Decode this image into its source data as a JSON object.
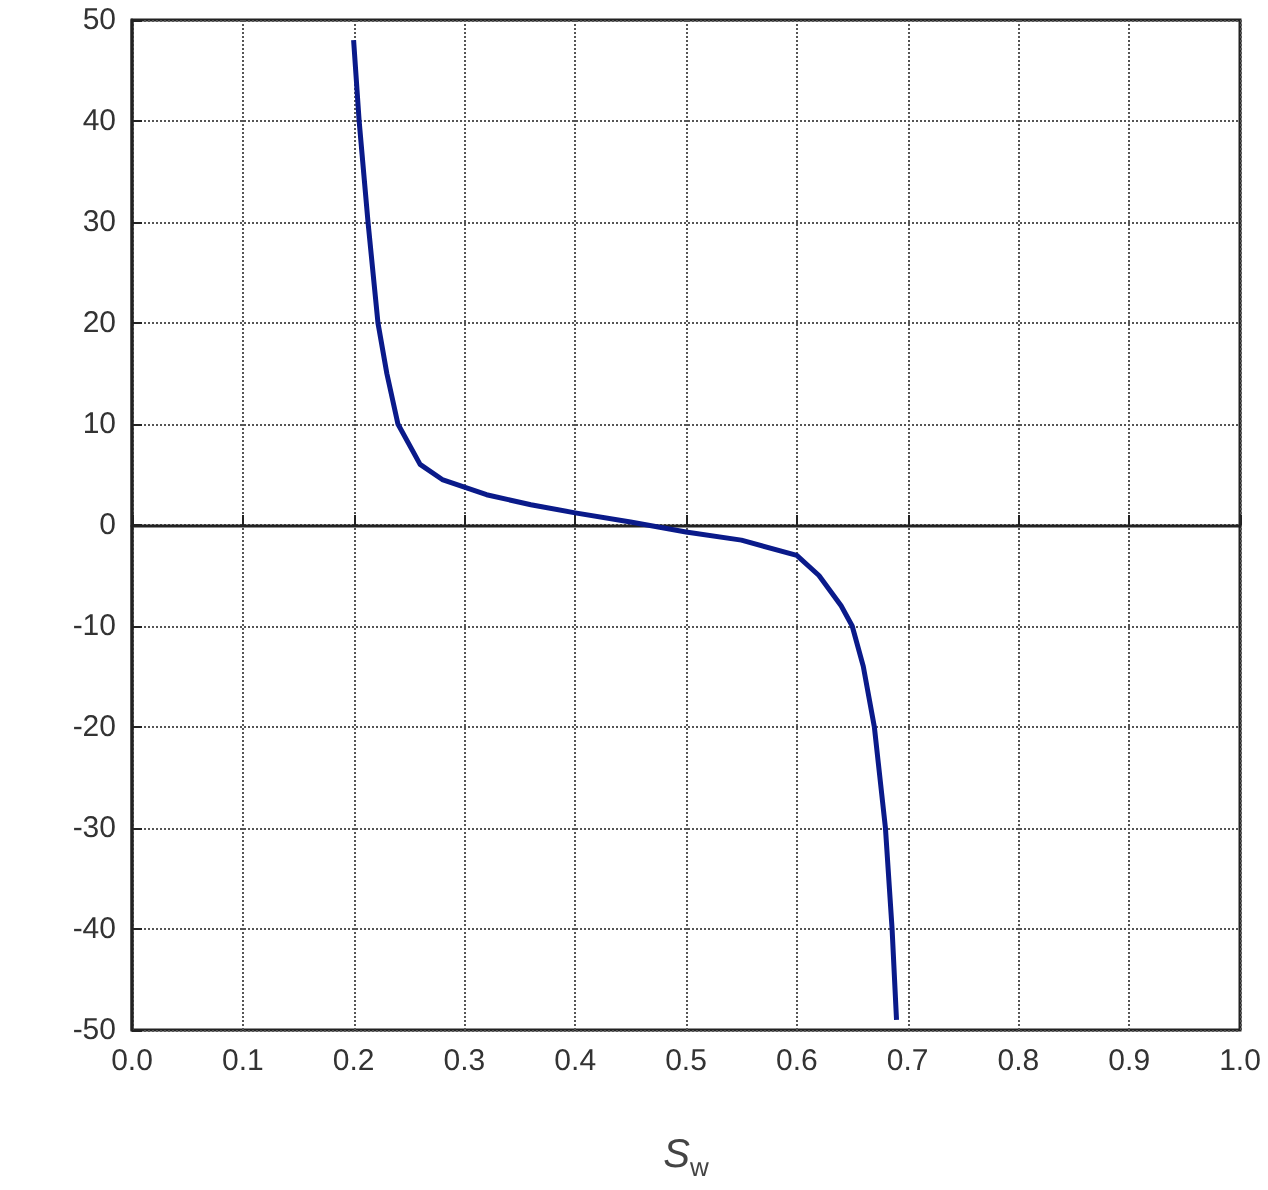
{
  "chart_data": {
    "type": "line",
    "xlabel": "S$_{w}$",
    "x": [
      0.2,
      0.205,
      0.213,
      0.222,
      0.23,
      0.24,
      0.26,
      0.28,
      0.32,
      0.36,
      0.4,
      0.45,
      0.5,
      0.55,
      0.6,
      0.62,
      0.64,
      0.65,
      0.66,
      0.67,
      0.68,
      0.686,
      0.69
    ],
    "values": [
      48,
      40,
      30,
      20,
      15,
      10,
      6,
      4.5,
      3,
      2,
      1.2,
      0.3,
      -0.7,
      -1.5,
      -3,
      -5,
      -8,
      -10,
      -14,
      -20,
      -30,
      -40,
      -49
    ],
    "color": "#0a1a8a",
    "xlim": [
      0,
      1
    ],
    "xticks": [
      {
        "value": 0,
        "label": "0.0"
      },
      0.1,
      0.2,
      0.3,
      0.4,
      0.5,
      0.6,
      0.7,
      0.8,
      0.9,
      {
        "value": 1,
        "label": "1.0"
      }
    ],
    "ylim": [
      -50,
      50
    ],
    "yticks": [
      -50,
      -40,
      -30,
      -20,
      -10,
      0,
      10,
      20,
      30,
      40,
      50
    ],
    "grid": true,
    "marker": "none",
    "line_style": "solid"
  }
}
